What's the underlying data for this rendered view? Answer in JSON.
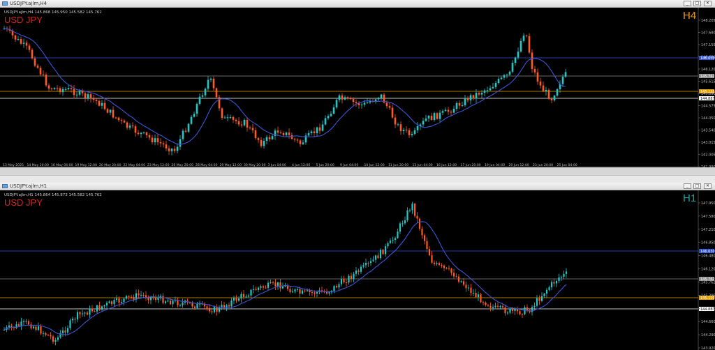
{
  "top_window": {
    "title": "USDJPY.ajlm,H4",
    "buttons": [
      "_",
      "□",
      "✕"
    ],
    "header_line": "USDJPY.ajlm,H4  145.868 145.950 145.582 145.762",
    "symbol_label": "USD JPY",
    "timeframe_label": "H4",
    "price_axis": [
      "148.205",
      "147.680",
      "147.155",
      "146.630",
      "146.120",
      "145.615",
      "145.090",
      "144.575",
      "144.050",
      "143.540",
      "143.015",
      "142.005",
      "141.990"
    ],
    "price_tags": [
      {
        "label": "146.630",
        "color": "#2a4fd8"
      },
      {
        "label": "145.762",
        "color": "#8c8c8c"
      },
      {
        "label": "145.120",
        "color": "#e6a100"
      },
      {
        "label": "144.887",
        "color": "#ffffff"
      }
    ],
    "time_axis": [
      "13 May 2025",
      "14 May 20:00",
      "16 May 04:00",
      "19 May 12:00",
      "20 May 20:00",
      "22 May 04:00",
      "23 May 12:00",
      "26 May 20:00",
      "28 May 04:00",
      "29 May 12:00",
      "30 May 20:00",
      "3 Jun 04:00",
      "4 Jun 12:00",
      "5 Jun 20:00",
      "9 Jun 04:00",
      "10 Jun 12:00",
      "11 Jun 20:00",
      "13 Jun 04:00",
      "16 Jun 12:00",
      "17 Jun 20:00",
      "19 Jun 04:00",
      "20 Jun 12:00",
      "23 Jun 20:00",
      "25 Jun 04:00"
    ]
  },
  "bottom_window": {
    "title": "USDJPY.ajlm,H1",
    "buttons": [
      "_",
      "□",
      "✕"
    ],
    "header_line": "USDJPY.ajlm,H1  145.864 145.873 145.582 145.762",
    "symbol_label": "USD JPY",
    "timeframe_label": "H1",
    "price_axis": [
      "147.950",
      "147.580",
      "147.210",
      "146.850",
      "146.480",
      "146.120",
      "145.762",
      "145.396",
      "145.030",
      "144.660",
      "144.290",
      "143.920"
    ],
    "price_tags": [
      {
        "label": "146.630",
        "color": "#2a4fd8"
      },
      {
        "label": "145.762",
        "color": "#8c8c8c"
      },
      {
        "label": "145.120",
        "color": "#e6a100"
      },
      {
        "label": "144.887",
        "color": "#ffffff"
      }
    ]
  },
  "colors": {
    "bull": "#1fc7c7",
    "bear": "#ff5a1f",
    "ma": "#3b56d6",
    "symbol_text": "#e0201a",
    "h4_text": "#e89a12",
    "h1_text": "#1fa0a0"
  }
}
